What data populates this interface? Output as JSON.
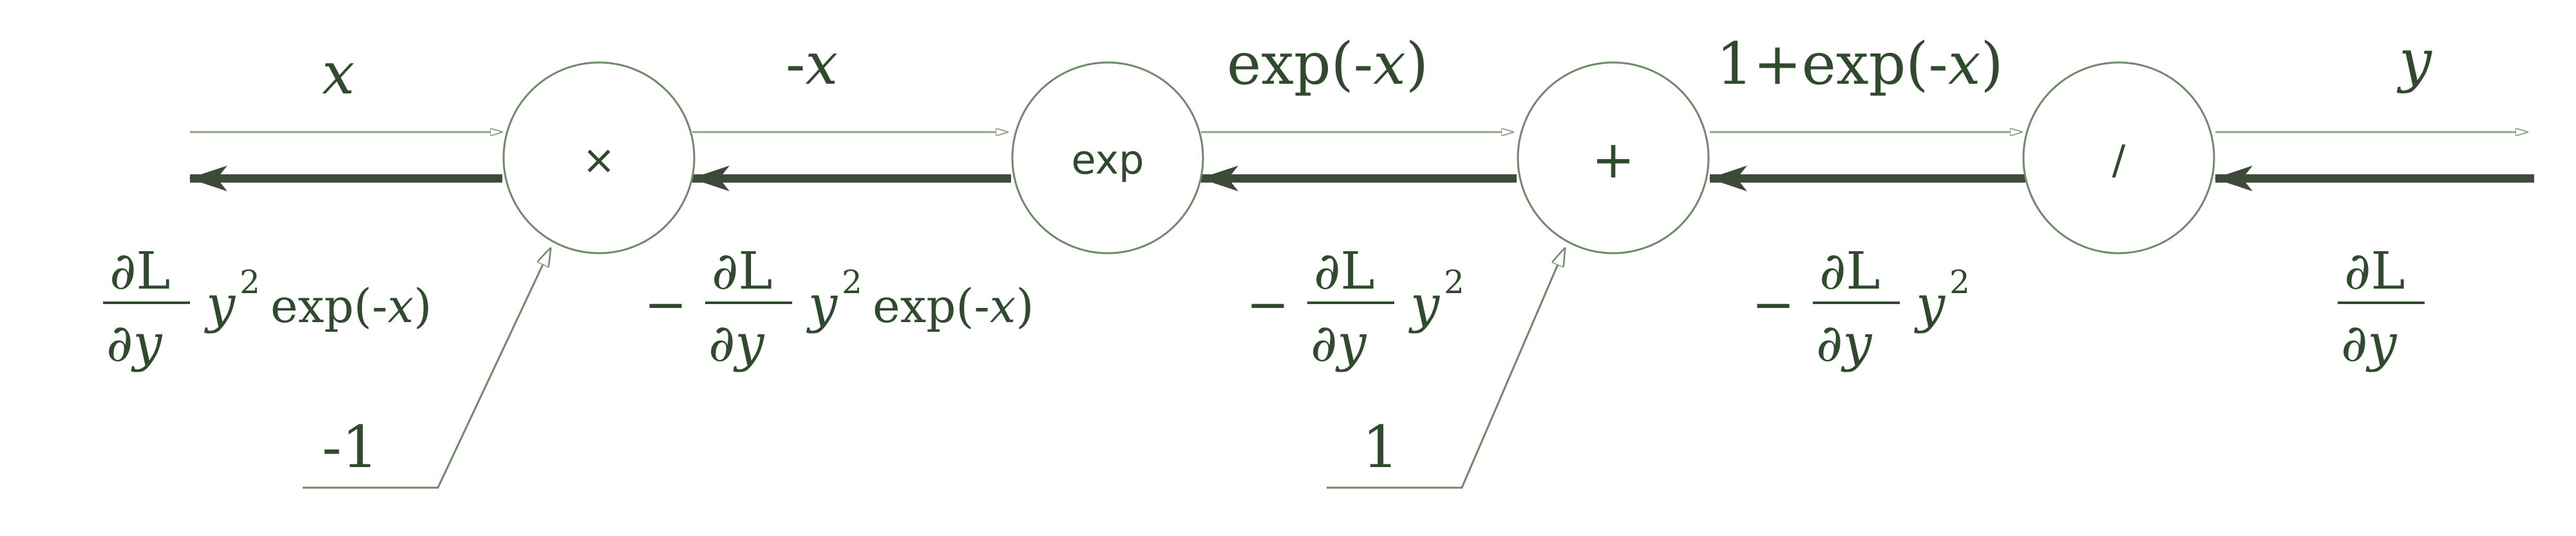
{
  "colors": {
    "ink": "#2f4a2c",
    "node_stroke": "#6f8a6a",
    "forward": "#8ea58a",
    "backward": "#3d4a3a"
  },
  "nodes": [
    {
      "id": "mul",
      "label": "×"
    },
    {
      "id": "exp",
      "label": "exp"
    },
    {
      "id": "add",
      "label": "+"
    },
    {
      "id": "div",
      "label": "/"
    }
  ],
  "forward_labels": {
    "x": "x",
    "neg_x_sign": "-",
    "neg_x_var": "x",
    "exp_neg_x_pre": "exp(-",
    "exp_neg_x_var": "x",
    "exp_neg_x_post": ")",
    "one_plus_pre": "1+exp(-",
    "one_plus_var": "x",
    "one_plus_post": ")",
    "y": "y"
  },
  "inputs": {
    "mul_input": "-1",
    "add_input": "1"
  },
  "backward_labels": {
    "partial_L": "∂L",
    "partial_y": "∂y",
    "minus": "−",
    "y_sym": "y",
    "squared": "2",
    "exp_pre": "exp(-",
    "exp_var": "x",
    "exp_post": ")"
  }
}
